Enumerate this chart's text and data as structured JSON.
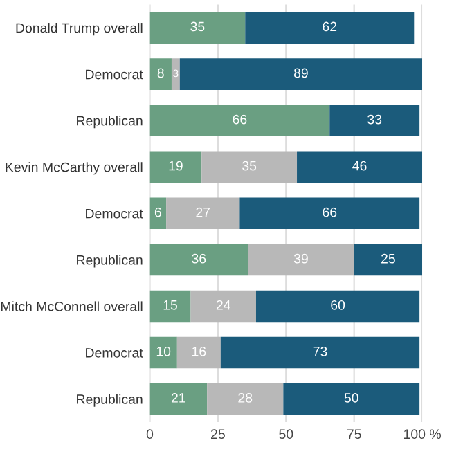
{
  "chart_data": {
    "type": "bar",
    "orientation": "horizontal",
    "stacked": true,
    "data_labels": true,
    "grid": "x",
    "legend": false,
    "categories": [
      "Donald Trump overall",
      "Democrat",
      "Republican",
      "Kevin McCarthy overall",
      "Democrat",
      "Republican",
      "Mitch McConnell overall",
      "Democrat",
      "Republican"
    ],
    "series": [
      {
        "color": "#6a9f82",
        "values": [
          35,
          8,
          66,
          19,
          6,
          36,
          15,
          10,
          21
        ]
      },
      {
        "color": "#b8b8b8",
        "values": [
          null,
          3,
          null,
          35,
          27,
          39,
          24,
          16,
          28
        ]
      },
      {
        "color": "#1b5b7b",
        "values": [
          62,
          89,
          33,
          46,
          66,
          25,
          60,
          73,
          50
        ]
      }
    ],
    "xlim": [
      0,
      100
    ],
    "xticks": [
      0,
      25,
      50,
      75,
      {
        "value": 100,
        "label": "100 %"
      }
    ]
  }
}
